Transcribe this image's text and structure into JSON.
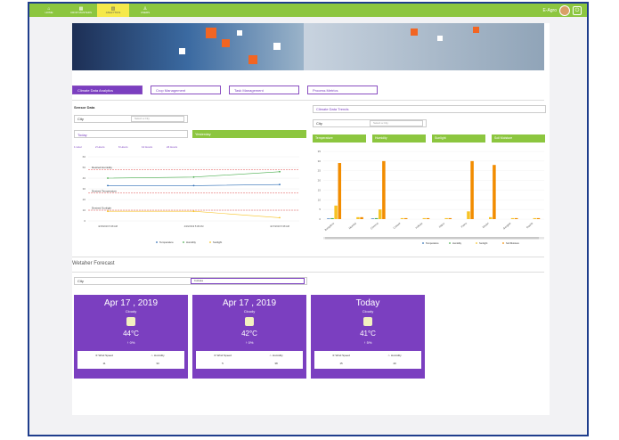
{
  "nav": [
    {
      "label": "HOME",
      "icon": "home-icon",
      "glyph": "⌂"
    },
    {
      "label": "CROP MASTERS",
      "icon": "grid-icon",
      "glyph": "▦"
    },
    {
      "label": "ANALYTICS",
      "icon": "chart-icon",
      "glyph": "▥"
    },
    {
      "label": "USERS",
      "icon": "user-icon",
      "glyph": "♙"
    }
  ],
  "user": {
    "name": "E-Agro",
    "power_glyph": "⏻"
  },
  "tabs": [
    "Climate Data Analytics",
    "Crop Management",
    "Task Management",
    "Process Metrics"
  ],
  "sensor": {
    "title": "Sensor Data",
    "city_label": "City",
    "city_placeholder": "Select a City",
    "today": "Today",
    "yesterday": "Yesterday",
    "intervals": [
      "1 Hour",
      "2 Hours",
      "6 Hours",
      "12 Hours",
      "24 Hours"
    ]
  },
  "trends": {
    "title": "Climate Data Trends",
    "city_label": "City",
    "city_placeholder": "Select a City",
    "metrics": [
      "Temperature",
      "Humidity",
      "Sunlight",
      "Soil Moisture"
    ]
  },
  "weather": {
    "title": "Wetaher Forecast",
    "city_label": "City",
    "city_value": "Kolkata",
    "cards": [
      {
        "date": "Apr 17 , 2019",
        "cond": "Cloudy",
        "temp": "44°C",
        "pct": "↑ 0%",
        "wind_label": "Wind Speed",
        "hum_label": "Humidity",
        "wind": "11",
        "hum": "33"
      },
      {
        "date": "Apr 17 , 2019",
        "cond": "Cloudy",
        "temp": "42°C",
        "pct": "↑ 0%",
        "wind_label": "Wind Speed",
        "hum_label": "Humidity",
        "wind": "5",
        "hum": "38"
      },
      {
        "date": "Today",
        "cond": "Cloudy",
        "temp": "41°C",
        "pct": "↑ 5%",
        "wind_label": "Wind Speed",
        "hum_label": "Humidity",
        "wind": "15",
        "hum": "40"
      }
    ]
  },
  "colors": {
    "accent": "#7b3fc0",
    "green": "#8cc63f",
    "temperature": "#2f6fb6",
    "humidity": "#4caf50",
    "sunlight": "#f7c325",
    "soil": "#f28c00",
    "threshold": "#e05050"
  },
  "chart_data": [
    {
      "type": "line",
      "title": "",
      "ylim": [
        0,
        60
      ],
      "yticks": [
        0,
        10,
        20,
        30,
        40,
        50,
        60
      ],
      "x": [
        "4/15/2019 5:38 AM GMT+05:30",
        "4/16/2019 5:38 AM GMT+05:30",
        "4/17/2019 5:38 AM GMT+05:30"
      ],
      "series": [
        {
          "name": "Temperature",
          "values": [
            33,
            33,
            34
          ]
        },
        {
          "name": "Humidity",
          "values": [
            40,
            41,
            46
          ]
        },
        {
          "name": "Sunlight",
          "values": [
            9,
            9,
            3
          ]
        }
      ],
      "thresholds": [
        {
          "label": "Desired Humidity",
          "value": 48
        },
        {
          "label": "Desired Temperature",
          "value": 26
        },
        {
          "label": "Desired Sunlight",
          "value": 10
        }
      ]
    },
    {
      "type": "bar",
      "title": "",
      "ylim": [
        0,
        35
      ],
      "yticks": [
        0,
        5,
        10,
        15,
        20,
        25,
        30,
        35
      ],
      "categories": [
        "Bangalore",
        "Mumbai",
        "Chennai",
        "Cuttack",
        "Kolkata",
        "Jaipur",
        "Patna",
        "Dhubri",
        "Gangtok",
        "Nashik"
      ],
      "series": [
        {
          "name": "Temperature",
          "values": [
            0.3,
            0,
            0.3,
            0,
            0,
            0,
            0,
            0,
            0,
            0
          ]
        },
        {
          "name": "Humidity",
          "values": [
            0.5,
            0,
            0.5,
            0,
            0,
            0,
            0,
            0,
            0,
            0
          ]
        },
        {
          "name": "Sunlight",
          "values": [
            7,
            1,
            5,
            0.5,
            0.5,
            0.5,
            4,
            1,
            0.5,
            0.5
          ]
        },
        {
          "name": "Soil Moisture",
          "values": [
            29,
            1,
            30,
            0.5,
            0.5,
            0.5,
            30,
            28,
            0.5,
            0.5
          ]
        }
      ]
    }
  ]
}
